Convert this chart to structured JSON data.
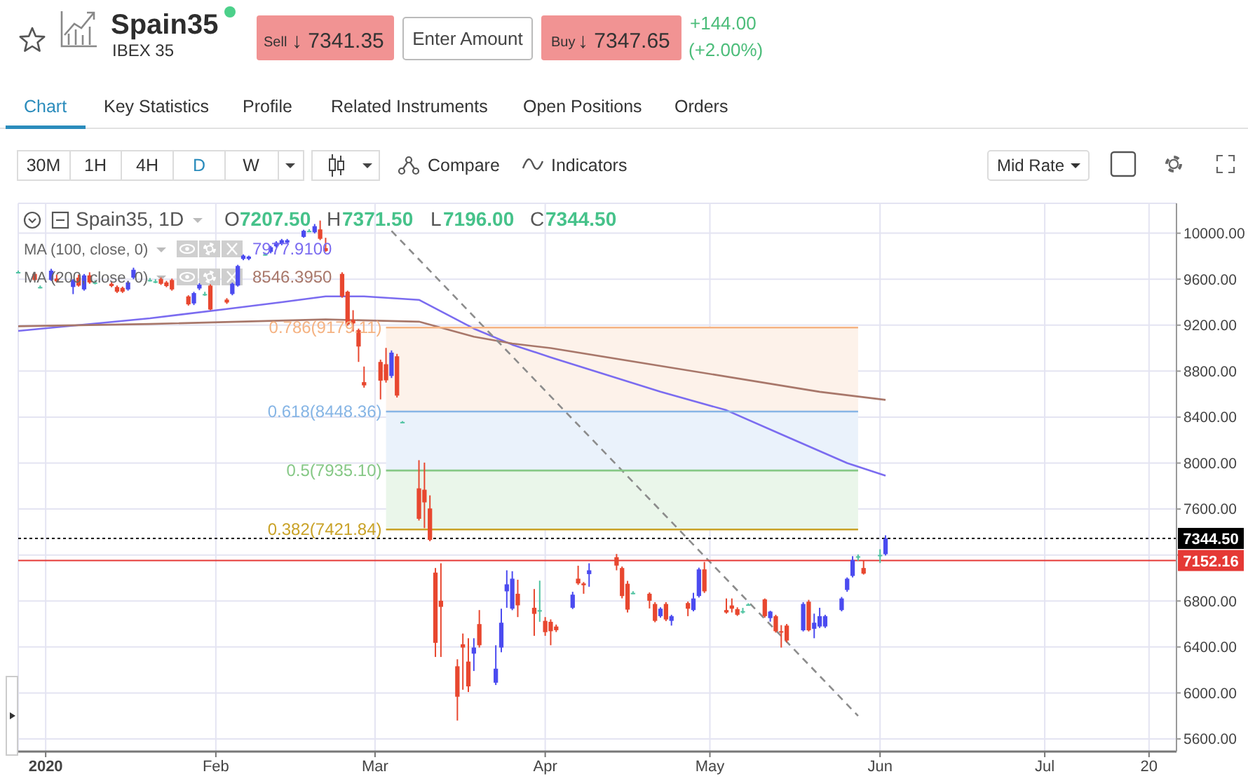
{
  "chart_data": {
    "type": "candlestick",
    "title": "Spain35",
    "subtitle": "IBEX 35",
    "xlim": [
      "2019-12-27",
      "2020-07-25"
    ],
    "xticks": [
      {
        "value": "2020-01-01",
        "label": "2020"
      },
      {
        "value": "2020-02-01",
        "label": "Feb"
      },
      {
        "value": "2020-03-01",
        "label": "Mar"
      },
      {
        "value": "2020-04-01",
        "label": "Apr"
      },
      {
        "value": "2020-05-01",
        "label": "May"
      },
      {
        "value": "2020-06-01",
        "label": "Jun"
      },
      {
        "value": "2020-07-01",
        "label": "Jul"
      },
      {
        "value": "2020-07-20",
        "label": "20"
      }
    ],
    "ylim": [
      5490,
      10260
    ],
    "yticks": [
      {
        "value": 5600,
        "label": "5600.00"
      },
      {
        "value": 6000,
        "label": "6000.00"
      },
      {
        "value": 6400,
        "label": "6400.00"
      },
      {
        "value": 6800,
        "label": "6800.00"
      },
      {
        "value": 7200,
        "label": null
      },
      {
        "value": 7600,
        "label": "7600.00"
      },
      {
        "value": 8000,
        "label": "8000.00"
      },
      {
        "value": 8400,
        "label": "8400.00"
      },
      {
        "value": 8800,
        "label": "8800.00"
      },
      {
        "value": 9200,
        "label": "9200.00"
      },
      {
        "value": 9600,
        "label": "9600.00"
      },
      {
        "value": 10000,
        "label": "10000.00"
      }
    ],
    "grid": true,
    "series": [
      {
        "x": [
          "2019-12-27",
          "2019-12-30",
          "2019-12-31",
          "2020-01-02",
          "2020-01-03",
          "2020-01-06",
          "2020-01-07",
          "2020-01-08",
          "2020-01-09",
          "2020-01-10",
          "2020-01-13",
          "2020-01-14",
          "2020-01-15",
          "2020-01-16",
          "2020-01-17",
          "2020-01-20",
          "2020-01-21",
          "2020-01-22",
          "2020-01-23",
          "2020-01-24",
          "2020-01-27",
          "2020-01-28",
          "2020-01-29",
          "2020-01-30",
          "2020-01-31",
          "2020-02-03",
          "2020-02-04",
          "2020-02-05",
          "2020-02-06",
          "2020-02-07",
          "2020-02-10",
          "2020-02-11",
          "2020-02-12",
          "2020-02-13",
          "2020-02-14",
          "2020-02-17",
          "2020-02-18",
          "2020-02-19",
          "2020-02-20",
          "2020-02-21",
          "2020-02-24",
          "2020-02-25",
          "2020-02-26",
          "2020-02-27",
          "2020-02-28",
          "2020-03-02",
          "2020-03-03",
          "2020-03-04",
          "2020-03-05",
          "2020-03-06",
          "2020-03-09",
          "2020-03-10",
          "2020-03-11",
          "2020-03-12",
          "2020-03-13",
          "2020-03-16",
          "2020-03-17",
          "2020-03-18",
          "2020-03-19",
          "2020-03-20",
          "2020-03-23",
          "2020-03-24",
          "2020-03-25",
          "2020-03-26",
          "2020-03-27",
          "2020-03-30",
          "2020-03-31",
          "2020-04-01",
          "2020-04-02",
          "2020-04-03",
          "2020-04-06",
          "2020-04-07",
          "2020-04-08",
          "2020-04-09",
          "2020-04-14",
          "2020-04-15",
          "2020-04-16",
          "2020-04-17",
          "2020-04-20",
          "2020-04-21",
          "2020-04-22",
          "2020-04-23",
          "2020-04-24",
          "2020-04-27",
          "2020-04-28",
          "2020-04-29",
          "2020-04-30",
          "2020-05-04",
          "2020-05-05",
          "2020-05-06",
          "2020-05-07",
          "2020-05-08",
          "2020-05-11",
          "2020-05-12",
          "2020-05-13",
          "2020-05-14",
          "2020-05-15",
          "2020-05-18",
          "2020-05-19",
          "2020-05-20",
          "2020-05-21",
          "2020-05-22",
          "2020-05-25",
          "2020-05-26",
          "2020-05-27",
          "2020-05-28",
          "2020-05-29",
          "2020-06-01",
          "2020-06-02"
        ],
        "ohlc": [
          [
            9662,
            9675,
            9650,
            9662
          ],
          [
            9646,
            9660,
            9585,
            9593
          ],
          [
            9532,
            9545,
            9520,
            9532
          ],
          [
            9593,
            9690,
            9585,
            9674
          ],
          [
            9605,
            9640,
            9570,
            9581
          ],
          [
            9532,
            9600,
            9470,
            9593
          ],
          [
            9613,
            9640,
            9535,
            9544
          ],
          [
            9511,
            9645,
            9500,
            9633
          ],
          [
            9633,
            9660,
            9560,
            9572
          ],
          [
            9572,
            9590,
            9555,
            9572
          ],
          [
            9560,
            9575,
            9530,
            9540
          ],
          [
            9532,
            9545,
            9480,
            9491
          ],
          [
            9524,
            9535,
            9480,
            9491
          ],
          [
            9511,
            9585,
            9500,
            9572
          ],
          [
            9613,
            9700,
            9600,
            9682
          ],
          [
            9593,
            9610,
            9580,
            9593
          ],
          [
            9581,
            9600,
            9565,
            9581
          ],
          [
            9601,
            9615,
            9550,
            9560
          ],
          [
            9572,
            9585,
            9530,
            9540
          ],
          [
            9593,
            9605,
            9500,
            9511
          ],
          [
            9450,
            9460,
            9370,
            9381
          ],
          [
            9389,
            9490,
            9375,
            9479
          ],
          [
            9519,
            9565,
            9505,
            9552
          ],
          [
            9471,
            9490,
            9455,
            9471
          ],
          [
            9544,
            9555,
            9330,
            9336
          ],
          [
            9422,
            9435,
            9385,
            9397
          ],
          [
            9471,
            9570,
            9460,
            9560
          ],
          [
            9544,
            9725,
            9535,
            9715
          ],
          [
            9776,
            9815,
            9765,
            9805
          ],
          [
            9776,
            9805,
            9765,
            9797
          ],
          [
            9817,
            9830,
            9805,
            9817
          ],
          [
            9837,
            9890,
            9825,
            9878
          ],
          [
            9886,
            9930,
            9875,
            9919
          ],
          [
            9906,
            9950,
            9895,
            9939
          ],
          [
            9919,
            9950,
            9910,
            9939
          ],
          [
            9968,
            10030,
            9960,
            10021
          ],
          [
            10021,
            10035,
            10010,
            10021
          ],
          [
            10008,
            10080,
            9998,
            10061
          ],
          [
            10033,
            10110,
            9940,
            9951
          ],
          [
            9870,
            9960,
            9837,
            9845
          ],
          [
            9646,
            9660,
            9438,
            9450
          ],
          [
            9491,
            9500,
            9195,
            9206
          ],
          [
            9245,
            9330,
            9145,
            9215
          ],
          [
            9157,
            9170,
            8880,
            9014
          ],
          [
            8704,
            8840,
            8656,
            8676
          ],
          [
            8880,
            8900,
            8554,
            8717
          ],
          [
            8860,
            9002,
            8700,
            8720
          ],
          [
            8758,
            8980,
            8740,
            8961
          ],
          [
            8929,
            8950,
            8570,
            8587
          ],
          [
            8358,
            8365,
            8350,
            8358
          ],
          [
            7780,
            8025,
            7500,
            7515
          ],
          [
            7768,
            8004,
            7434,
            7658
          ],
          [
            7605,
            7719,
            7320,
            7332
          ],
          [
            7047,
            7087,
            6313,
            6436
          ],
          [
            6802,
            7128,
            6313,
            6749
          ],
          [
            6232,
            6293,
            5760,
            5967
          ],
          [
            6423,
            6517,
            6028,
            6395
          ],
          [
            6273,
            6476,
            6008,
            6057
          ],
          [
            6342,
            6476,
            6191,
            6395
          ],
          [
            6599,
            6721,
            6395,
            6415
          ],
          [
            6089,
            6415,
            6069,
            6211
          ],
          [
            6395,
            6733,
            6354,
            6611
          ],
          [
            6884,
            7067,
            6741,
            6945
          ],
          [
            6733,
            7059,
            6720,
            6994
          ],
          [
            6863,
            6985,
            6660,
            6762
          ],
          [
            6741,
            6904,
            6497,
            6688
          ],
          [
            6720,
            6977,
            6619,
            6720
          ],
          [
            6627,
            6660,
            6497,
            6529
          ],
          [
            6619,
            6640,
            6415,
            6537
          ],
          [
            6578,
            6595,
            6530,
            6546
          ],
          [
            6741,
            6880,
            6730,
            6855
          ],
          [
            6994,
            7107,
            6940,
            6953
          ],
          [
            6953,
            6965,
            6863,
            6937
          ],
          [
            7034,
            7128,
            6924,
            7067
          ],
          [
            7181,
            7209,
            7067,
            7108
          ],
          [
            7087,
            7100,
            6823,
            6843
          ],
          [
            6950,
            6975,
            6700,
            6725
          ],
          [
            6871,
            6885,
            6860,
            6871
          ],
          [
            6863,
            6875,
            6735,
            6802
          ],
          [
            6774,
            6790,
            6615,
            6627
          ],
          [
            6668,
            6745,
            6655,
            6733
          ],
          [
            6774,
            6790,
            6625,
            6639
          ],
          [
            6627,
            6680,
            6586,
            6668
          ],
          [
            6782,
            6795,
            6668,
            6733
          ],
          [
            6721,
            6871,
            6710,
            6822
          ],
          [
            6843,
            7090,
            6830,
            7075
          ],
          [
            7075,
            7140,
            6870,
            6884
          ],
          [
            6721,
            6822,
            6690,
            6700
          ],
          [
            6761,
            6822,
            6700,
            6733
          ],
          [
            6729,
            6745,
            6670,
            6680
          ],
          [
            6712,
            6740,
            6690,
            6712
          ],
          [
            6770,
            6780,
            6760,
            6770
          ],
          [
            6814,
            6822,
            6655,
            6668
          ],
          [
            6651,
            6715,
            6620,
            6708
          ],
          [
            6668,
            6680,
            6525,
            6537
          ],
          [
            6537,
            6590,
            6395,
            6529
          ],
          [
            6586,
            6600,
            6440,
            6456
          ],
          [
            6545,
            6790,
            6535,
            6774
          ],
          [
            6794,
            6810,
            6535,
            6545
          ],
          [
            6558,
            6690,
            6476,
            6611
          ],
          [
            6578,
            6741,
            6565,
            6668
          ],
          [
            6578,
            6680,
            6565,
            6668
          ],
          [
            6721,
            6835,
            6710,
            6822
          ],
          [
            6896,
            7005,
            6880,
            6994
          ],
          [
            7018,
            7190,
            7005,
            7157
          ],
          [
            7189,
            7205,
            7150,
            7189
          ],
          [
            7087,
            7150,
            7030,
            7038
          ],
          [
            7201,
            7250,
            7130,
            7201
          ],
          [
            7207.5,
            7371.5,
            7196,
            7344.5
          ]
        ],
        "colors": [
          "#4fc3a1",
          "#e8472f",
          "#4fc3a1",
          "#4b4bf0",
          "#e8472f",
          "#4b4bf0",
          "#e8472f",
          "#4b4bf0",
          "#e8472f",
          "#4fc3a1",
          "#e8472f",
          "#e8472f",
          "#e8472f",
          "#4b4bf0",
          "#4b4bf0",
          "#4fc3a1",
          "#4fc3a1",
          "#e8472f",
          "#e8472f",
          "#e8472f",
          "#e8472f",
          "#4b4bf0",
          "#4b4bf0",
          "#4fc3a1",
          "#e8472f",
          "#e8472f",
          "#4b4bf0",
          "#4b4bf0",
          "#4b4bf0",
          "#4b4bf0",
          "#4fc3a1",
          "#4b4bf0",
          "#4b4bf0",
          "#4b4bf0",
          "#4b4bf0",
          "#4b4bf0",
          "#4fc3a1",
          "#4b4bf0",
          "#e8472f",
          "#e8472f",
          "#e8472f",
          "#e8472f",
          "#e8472f",
          "#e8472f",
          "#e8472f",
          "#e8472f",
          "#e8472f",
          "#4b4bf0",
          "#e8472f",
          "#4fc3a1",
          "#e8472f",
          "#e8472f",
          "#e8472f",
          "#e8472f",
          "#e8472f",
          "#e8472f",
          "#e8472f",
          "#e8472f",
          "#4b4bf0",
          "#e8472f",
          "#4b4bf0",
          "#4b4bf0",
          "#4b4bf0",
          "#4b4bf0",
          "#e8472f",
          "#e8472f",
          "#4fc3a1",
          "#e8472f",
          "#e8472f",
          "#e8472f",
          "#4b4bf0",
          "#e8472f",
          "#e8472f",
          "#4b4bf0",
          "#e8472f",
          "#e8472f",
          "#e8472f",
          "#4fc3a1",
          "#e8472f",
          "#e8472f",
          "#4b4bf0",
          "#e8472f",
          "#4b4bf0",
          "#e8472f",
          "#4b4bf0",
          "#4b4bf0",
          "#e8472f",
          "#e8472f",
          "#e8472f",
          "#e8472f",
          "#4fc3a1",
          "#4fc3a1",
          "#e8472f",
          "#4b4bf0",
          "#e8472f",
          "#e8472f",
          "#e8472f",
          "#4b4bf0",
          "#e8472f",
          "#4b4bf0",
          "#4b4bf0",
          "#4b4bf0",
          "#4b4bf0",
          "#4b4bf0",
          "#4b4bf0",
          "#4fc3a1",
          "#e8472f",
          "#4fc3a1",
          "#4b4bf0"
        ]
      },
      {
        "type": "line",
        "color": "#7b6cf0",
        "x": [
          "2019-12-27",
          "2020-01-20",
          "2020-02-03",
          "2020-02-13",
          "2020-02-21",
          "2020-02-28",
          "2020-03-09",
          "2020-03-19",
          "2020-03-26",
          "2020-04-02",
          "2020-04-22",
          "2020-05-04",
          "2020-05-14",
          "2020-05-26",
          "2020-06-02"
        ],
        "values": [
          9150,
          9260,
          9340,
          9400,
          9450,
          9450,
          9420,
          9170,
          9030,
          8920,
          8620,
          8460,
          8250,
          8000,
          7890
        ]
      },
      {
        "type": "line",
        "color": "#a8776a",
        "x": [
          "2019-12-27",
          "2020-01-20",
          "2020-02-21",
          "2020-03-09",
          "2020-03-19",
          "2020-03-26",
          "2020-04-02",
          "2020-04-24",
          "2020-05-21",
          "2020-06-02"
        ],
        "values": [
          9190,
          9210,
          9250,
          9230,
          9100,
          9040,
          9000,
          8830,
          8620,
          8550
        ]
      },
      {
        "type": "line",
        "color": "#8c8c8c",
        "line_style": "dashed",
        "x": [
          "2020-03-04",
          "2020-05-28"
        ],
        "values": [
          10020,
          5800
        ]
      },
      {
        "type": "line",
        "color": "#f5b383",
        "x": [
          "2020-03-03",
          "2020-05-28"
        ],
        "values": [
          9179.11,
          9179.11
        ],
        "lower": [
          8448.36,
          8448.36
        ],
        "upper": [
          9179.11,
          9179.11
        ]
      },
      {
        "type": "line",
        "color": "#86b5e5",
        "x": [
          "2020-03-03",
          "2020-05-28"
        ],
        "values": [
          8448.36,
          8448.36
        ],
        "lower": [
          7935.1,
          7935.1
        ],
        "upper": [
          8448.36,
          8448.36
        ]
      },
      {
        "type": "line",
        "color": "#86c886",
        "x": [
          "2020-03-03",
          "2020-05-28"
        ],
        "values": [
          7935.1,
          7935.1
        ],
        "lower": [
          7421.84,
          7421.84
        ],
        "upper": [
          7935.1,
          7935.1
        ]
      },
      {
        "type": "line",
        "color": "#c9a227",
        "x": [
          "2020-03-03",
          "2020-05-28"
        ],
        "values": [
          7421.84,
          7421.84
        ]
      }
    ],
    "ref_lines": [
      {
        "axis": "y",
        "value": 7344.5,
        "label": "7344.50",
        "color": "#000000",
        "line_style": "dotted"
      },
      {
        "axis": "y",
        "value": 7152.16,
        "label": "7152.16",
        "color": "#e53935",
        "line_style": "solid"
      }
    ],
    "annotations": [
      "+144.00",
      "(+2.00%)",
      "Sell",
      "↓ 7341.35",
      "Enter Amount",
      "Buy",
      "↓ 7347.65",
      "Chart",
      "Key Statistics",
      "Profile",
      "Related Instruments",
      "Open Positions",
      "Orders",
      "30M",
      "1H",
      "4H",
      "D",
      "W",
      "Compare",
      "Indicators",
      "Mid Rate",
      "Spain35, 1D",
      "O",
      "7207.50",
      "H",
      "7371.50",
      "L",
      "7196.00",
      "C",
      "7344.50",
      "MA (100, close, 0)",
      "MA (200, close, 0)",
      "7977.9100",
      "8546.3950",
      {
        "text": "0.786(9179.11)",
        "x": "2020-03-03",
        "y": 9179.11
      },
      {
        "text": "0.618(8448.36)",
        "x": "2020-03-03",
        "y": 8448.36
      },
      {
        "text": "0.5(7935.10)",
        "x": "2020-03-03",
        "y": 7935.1
      },
      {
        "text": "0.382(7421.84)",
        "x": "2020-03-03",
        "y": 7421.84
      }
    ]
  }
}
